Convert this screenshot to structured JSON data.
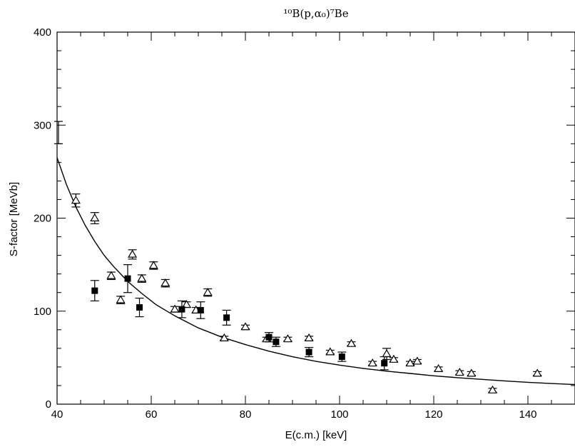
{
  "chart_data": {
    "type": "scatter",
    "title": "¹⁰B(p,α₀)⁷Be",
    "xlabel": "E(c.m.) [keV]",
    "ylabel": "S-factor [MeVb]",
    "xlim": [
      40,
      150
    ],
    "ylim": [
      0,
      400
    ],
    "x_major_ticks": [
      40,
      60,
      80,
      100,
      120,
      140
    ],
    "y_major_ticks": [
      0,
      100,
      200,
      300,
      400
    ],
    "x_tick_labels": [
      "40",
      "60",
      "80",
      "100",
      "120",
      "140"
    ],
    "y_tick_labels": [
      "0",
      "100",
      "200",
      "300",
      "400"
    ],
    "grid": false,
    "series": [
      {
        "marker": "open-triangle",
        "points": [
          {
            "x": 40.3,
            "y": 292,
            "err": 12
          },
          {
            "x": 44,
            "y": 219,
            "err": 7
          },
          {
            "x": 48,
            "y": 200,
            "err": 6
          },
          {
            "x": 51.5,
            "y": 138,
            "err": 4
          },
          {
            "x": 53.5,
            "y": 112,
            "err": 4
          },
          {
            "x": 56,
            "y": 161,
            "err": 5
          },
          {
            "x": 58,
            "y": 135,
            "err": 4
          },
          {
            "x": 60.5,
            "y": 149,
            "err": 4
          },
          {
            "x": 63,
            "y": 130,
            "err": 4
          },
          {
            "x": 65,
            "y": 102,
            "err": 3
          },
          {
            "x": 67.5,
            "y": 107,
            "err": 3
          },
          {
            "x": 69.5,
            "y": 101,
            "err": 3
          },
          {
            "x": 72,
            "y": 120,
            "err": 4
          },
          {
            "x": 75.5,
            "y": 71,
            "err": 2
          },
          {
            "x": 80,
            "y": 83,
            "err": 2
          },
          {
            "x": 84.5,
            "y": 70,
            "err": 2
          },
          {
            "x": 89,
            "y": 70,
            "err": 2
          },
          {
            "x": 93.5,
            "y": 71,
            "err": 2
          },
          {
            "x": 98,
            "y": 56,
            "err": 2
          },
          {
            "x": 102.5,
            "y": 65,
            "err": 2
          },
          {
            "x": 107,
            "y": 44,
            "err": 2
          },
          {
            "x": 110,
            "y": 54,
            "err": 6
          },
          {
            "x": 111.5,
            "y": 48,
            "err": 2
          },
          {
            "x": 115,
            "y": 44,
            "err": 2
          },
          {
            "x": 116.5,
            "y": 46,
            "err": 2
          },
          {
            "x": 121,
            "y": 38,
            "err": 2
          },
          {
            "x": 125.5,
            "y": 34,
            "err": 2
          },
          {
            "x": 128,
            "y": 33,
            "err": 2
          },
          {
            "x": 132.5,
            "y": 15,
            "err": 2
          },
          {
            "x": 142,
            "y": 33,
            "err": 2
          }
        ]
      },
      {
        "marker": "filled-square",
        "points": [
          {
            "x": 48,
            "y": 122,
            "err": 11
          },
          {
            "x": 55,
            "y": 135,
            "err": 15
          },
          {
            "x": 57.5,
            "y": 104,
            "err": 10
          },
          {
            "x": 66.5,
            "y": 102,
            "err": 9
          },
          {
            "x": 70.5,
            "y": 101,
            "err": 9
          },
          {
            "x": 76,
            "y": 93,
            "err": 8
          },
          {
            "x": 85,
            "y": 72,
            "err": 5
          },
          {
            "x": 86.5,
            "y": 67,
            "err": 5
          },
          {
            "x": 93.5,
            "y": 56,
            "err": 5
          },
          {
            "x": 100.5,
            "y": 51,
            "err": 5
          },
          {
            "x": 109.5,
            "y": 44,
            "err": 7
          }
        ]
      },
      {
        "type": "line",
        "x": [
          40,
          42,
          44,
          46,
          48,
          50,
          52,
          55,
          58,
          61,
          65,
          70,
          75,
          80,
          85,
          90,
          95,
          100,
          105,
          110,
          115,
          120,
          125,
          130,
          135,
          140,
          145,
          150
        ],
        "y": [
          265,
          236,
          212,
          192,
          175,
          160,
          148,
          132,
          119,
          107,
          95,
          82,
          72,
          64,
          57,
          51,
          46,
          42,
          38.5,
          35.5,
          33,
          30.5,
          28.5,
          26.7,
          25,
          23.5,
          22.2,
          21
        ]
      }
    ]
  }
}
